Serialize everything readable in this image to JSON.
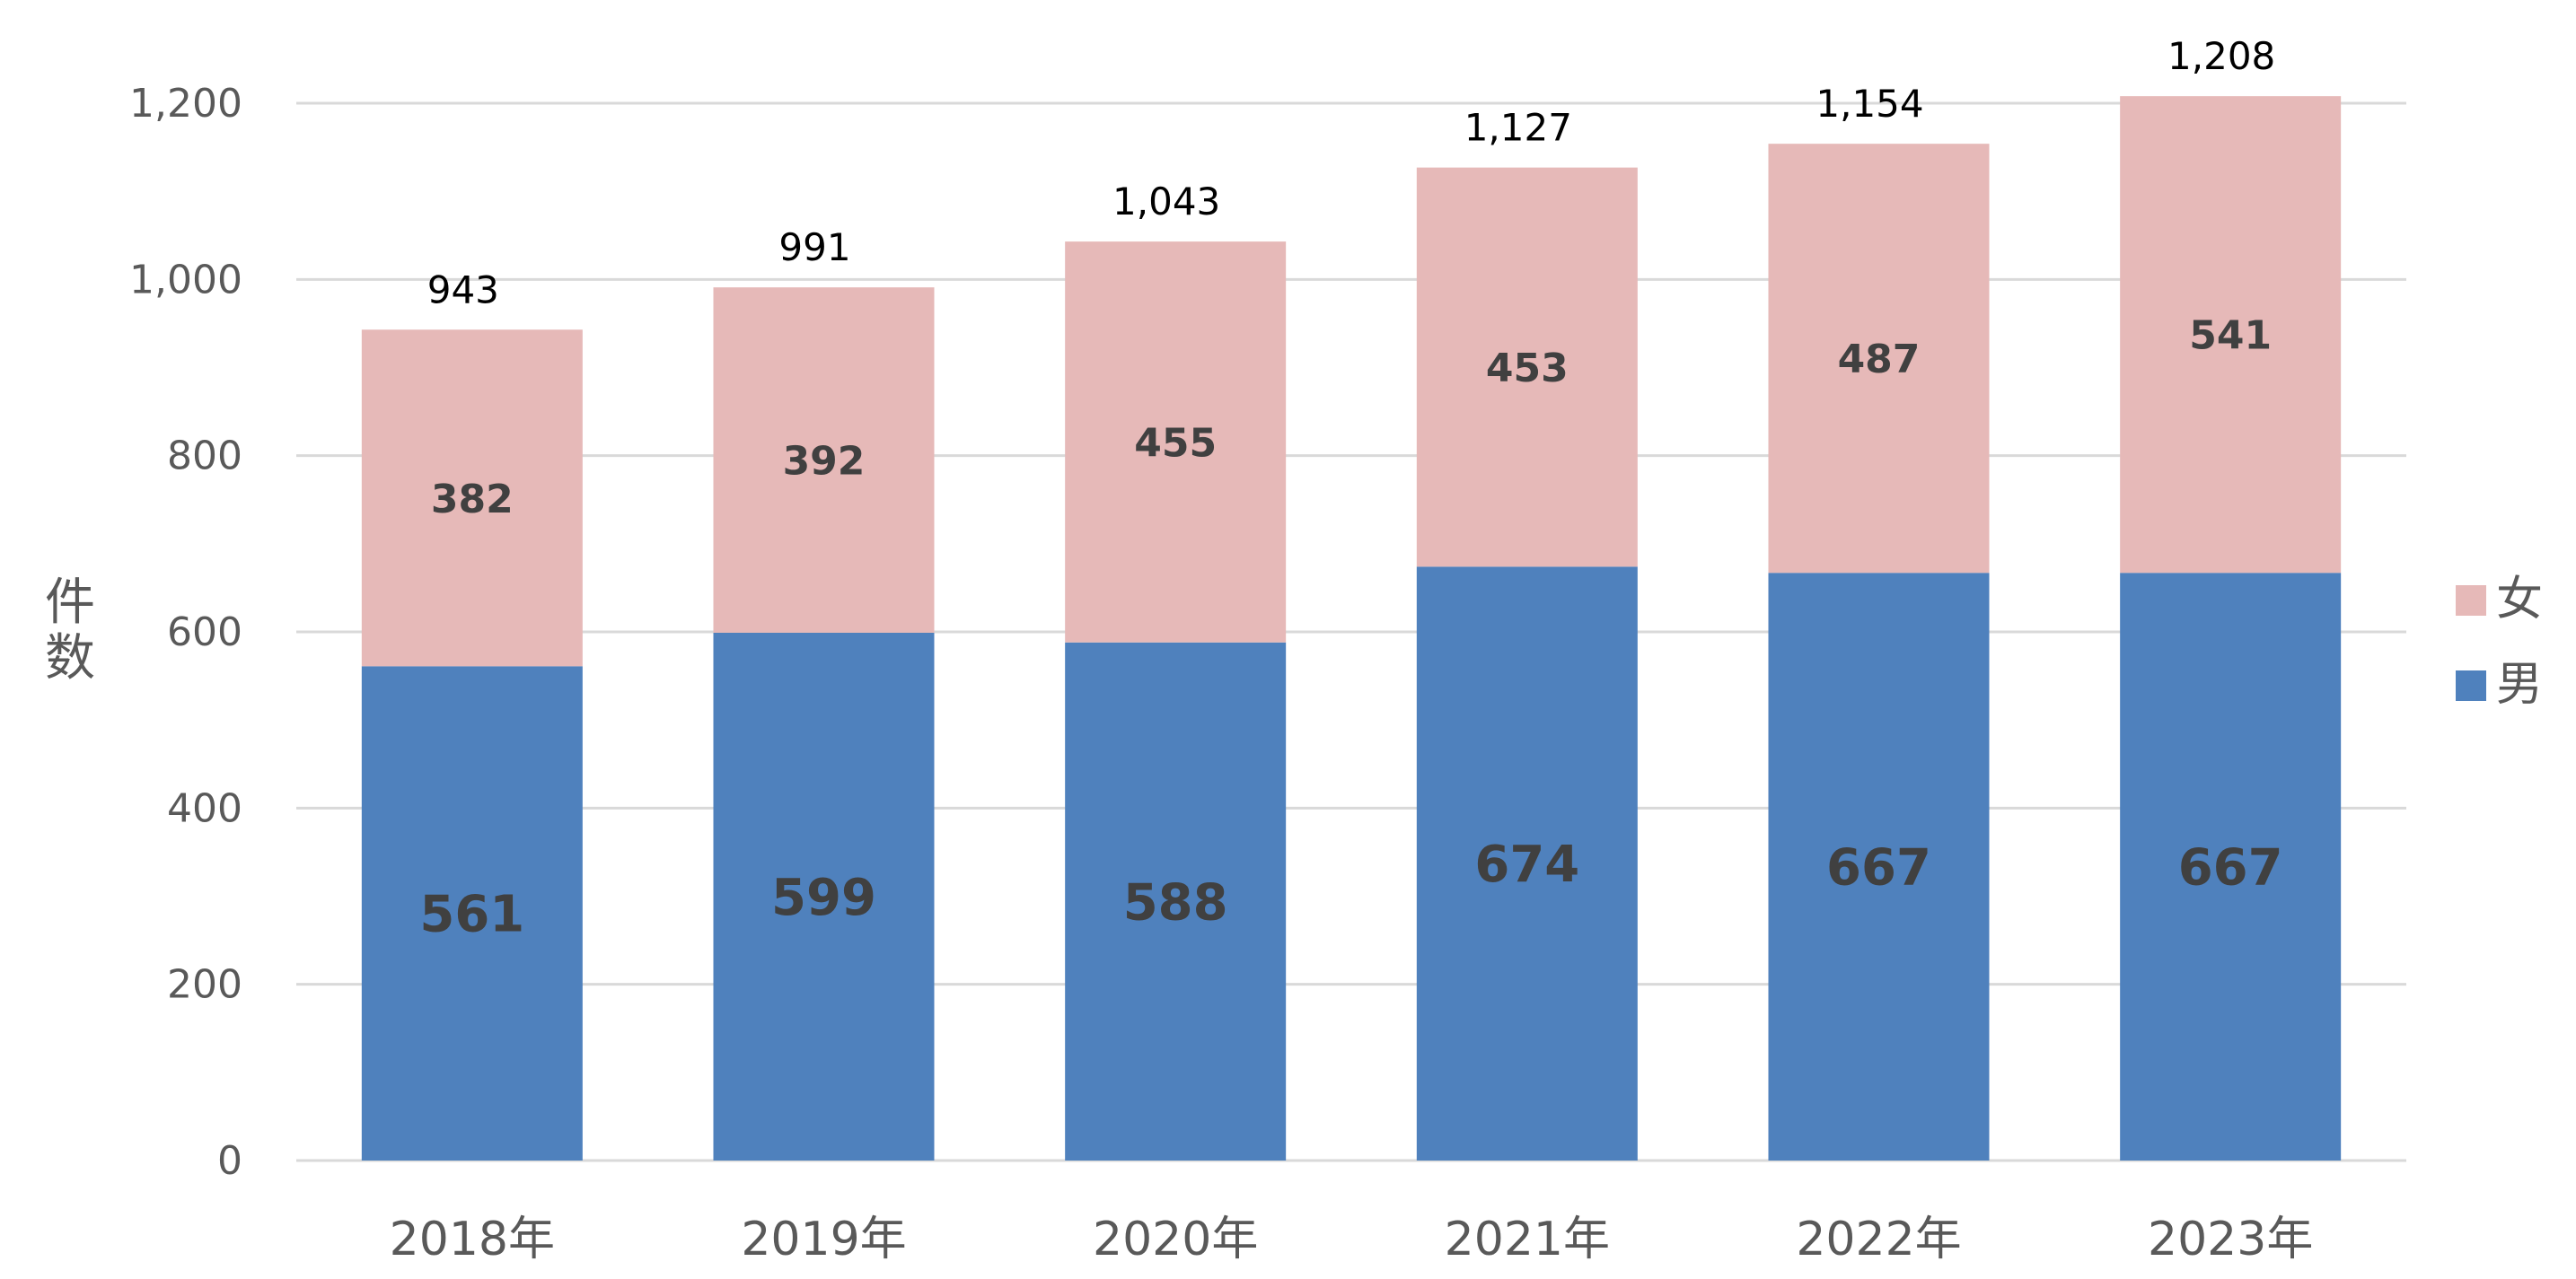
{
  "chart_data": {
    "type": "bar",
    "stacked": true,
    "categories": [
      "2018年",
      "2019年",
      "2020年",
      "2021年",
      "2022年",
      "2023年"
    ],
    "series": [
      {
        "name": "男",
        "values": [
          561,
          599,
          588,
          674,
          667,
          667
        ],
        "color": "#4f81bd"
      },
      {
        "name": "女",
        "values": [
          382,
          392,
          455,
          453,
          487,
          541
        ],
        "color": "#e6b9b8"
      }
    ],
    "totals": [
      943,
      991,
      1043,
      1127,
      1154,
      1208
    ],
    "total_labels": [
      "943",
      "991",
      "1,043",
      "1,127",
      "1,154",
      "1,208"
    ],
    "ylabel": "件数",
    "ylim": [
      0,
      1200
    ],
    "yticks": [
      0,
      200,
      400,
      600,
      800,
      1000,
      1200
    ],
    "ytick_labels": [
      "0",
      "200",
      "400",
      "600",
      "800",
      "1,000",
      "1,200"
    ],
    "grid": true,
    "legend": {
      "position": "right",
      "items": [
        "女",
        "男"
      ]
    }
  }
}
